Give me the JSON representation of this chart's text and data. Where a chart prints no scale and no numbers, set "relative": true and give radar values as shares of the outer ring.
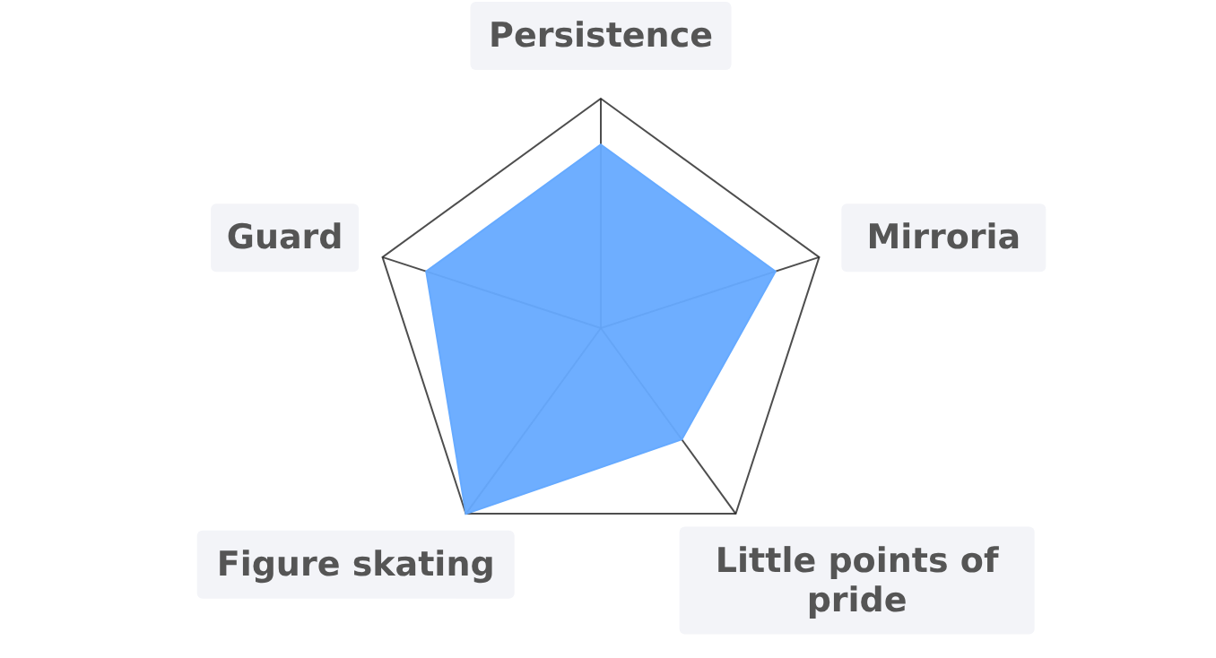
{
  "chart_data": {
    "type": "radar",
    "relative": true,
    "categories": [
      "Persistence",
      "Mirroria",
      "Little points of pride",
      "Figure skating",
      "Guard"
    ],
    "series": [
      {
        "color": "#66aaff",
        "values": [
          0.8,
          0.8,
          0.6,
          1.0,
          0.8
        ]
      }
    ]
  }
}
